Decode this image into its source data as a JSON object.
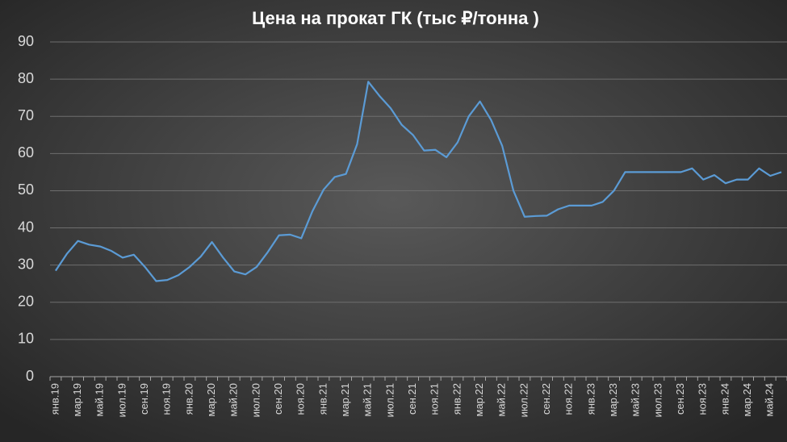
{
  "chart_data": {
    "type": "line",
    "title": "Цена на прокат ГК (тыс ₽/тонна )",
    "categories": [
      "янв.19",
      null,
      "мар.19",
      null,
      "май.19",
      null,
      "июл.19",
      null,
      "сен.19",
      null,
      "ноя.19",
      null,
      "янв.20",
      null,
      "мар.20",
      null,
      "май.20",
      null,
      "июл.20",
      null,
      "сен.20",
      null,
      "ноя.20",
      null,
      "янв.21",
      null,
      "мар.21",
      null,
      "май.21",
      null,
      "июл.21",
      null,
      "сен.21",
      null,
      "ноя.21",
      null,
      "янв.22",
      null,
      "мар.22",
      null,
      "май.22",
      null,
      "июл.22",
      null,
      "сен.22",
      null,
      "ноя.22",
      null,
      "янв.23",
      null,
      "мар.23",
      null,
      "май.23",
      null,
      "июл.23",
      null,
      "сен.23",
      null,
      "ноя.23",
      null,
      "янв.24",
      null,
      "мар.24",
      null,
      "май.24",
      null
    ],
    "series": [
      {
        "color": "#5b9bd5",
        "values": [
          28.5,
          33,
          36.5,
          35.5,
          35,
          33.8,
          32,
          32.8,
          29.5,
          25.7,
          26,
          27.3,
          29.5,
          32.3,
          36.2,
          32,
          28.3,
          27.5,
          29.5,
          33.5,
          38,
          38.2,
          37.2,
          44.5,
          50.3,
          53.7,
          54.5,
          62.5,
          79.3,
          75.5,
          72.2,
          67.7,
          65,
          60.8,
          61,
          59,
          63,
          70,
          74,
          69,
          62,
          50,
          43,
          43.2,
          43.3,
          45,
          46,
          46,
          46,
          47,
          50,
          55,
          55,
          55,
          55,
          55,
          55,
          56,
          53,
          54.2,
          52,
          53,
          53,
          56,
          54,
          55
        ]
      }
    ],
    "ylim": [
      0,
      90
    ],
    "yticks": [
      0,
      10,
      20,
      30,
      40,
      50,
      60,
      70,
      80,
      90
    ],
    "grid": true
  }
}
